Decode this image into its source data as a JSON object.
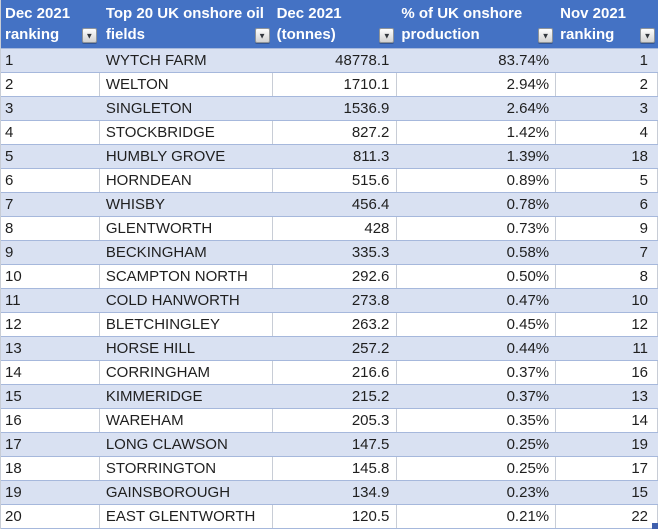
{
  "table": {
    "columns": [
      {
        "line1": "Dec 2021",
        "line2": "ranking"
      },
      {
        "line1": "Top 20 UK onshore oil",
        "line2": "fields"
      },
      {
        "line1": "Dec 2021",
        "line2": "(tonnes)"
      },
      {
        "line1": "% of UK onshore",
        "line2": "production"
      },
      {
        "line1": "Nov 2021",
        "line2": "ranking"
      }
    ],
    "rows": [
      [
        "1",
        "WYTCH FARM",
        "48778.1",
        "83.74%",
        "1"
      ],
      [
        "2",
        "WELTON",
        "1710.1",
        "2.94%",
        "2"
      ],
      [
        "3",
        "SINGLETON",
        "1536.9",
        "2.64%",
        "3"
      ],
      [
        "4",
        "STOCKBRIDGE",
        "827.2",
        "1.42%",
        "4"
      ],
      [
        "5",
        "HUMBLY GROVE",
        "811.3",
        "1.39%",
        "18"
      ],
      [
        "6",
        "HORNDEAN",
        "515.6",
        "0.89%",
        "5"
      ],
      [
        "7",
        "WHISBY",
        "456.4",
        "0.78%",
        "6"
      ],
      [
        "8",
        "GLENTWORTH",
        "428",
        "0.73%",
        "9"
      ],
      [
        "9",
        "BECKINGHAM",
        "335.3",
        "0.58%",
        "7"
      ],
      [
        "10",
        "SCAMPTON NORTH",
        "292.6",
        "0.50%",
        "8"
      ],
      [
        "11",
        "COLD HANWORTH",
        "273.8",
        "0.47%",
        "10"
      ],
      [
        "12",
        "BLETCHINGLEY",
        "263.2",
        "0.45%",
        "12"
      ],
      [
        "13",
        "HORSE HILL",
        "257.2",
        "0.44%",
        "11"
      ],
      [
        "14",
        "CORRINGHAM",
        "216.6",
        "0.37%",
        "16"
      ],
      [
        "15",
        "KIMMERIDGE",
        "215.2",
        "0.37%",
        "13"
      ],
      [
        "16",
        "WAREHAM",
        "205.3",
        "0.35%",
        "14"
      ],
      [
        "17",
        "LONG CLAWSON",
        "147.5",
        "0.25%",
        "19"
      ],
      [
        "18",
        "STORRINGTON",
        "145.8",
        "0.25%",
        "17"
      ],
      [
        "19",
        "GAINSBOROUGH",
        "134.9",
        "0.23%",
        "15"
      ],
      [
        "20",
        "EAST GLENTWORTH",
        "120.5",
        "0.21%",
        "22"
      ]
    ]
  },
  "icons": {
    "filter_dropdown_arrow": "▼"
  },
  "colors": {
    "header_bg": "#4472C4",
    "header_text": "#FFFFFF",
    "band_bg": "#D9E1F2",
    "row_border": "#A6B8DC",
    "gridline": "#C8CDD6",
    "cell_text": "#1F1F1F",
    "handle": "#3F5FAD"
  }
}
